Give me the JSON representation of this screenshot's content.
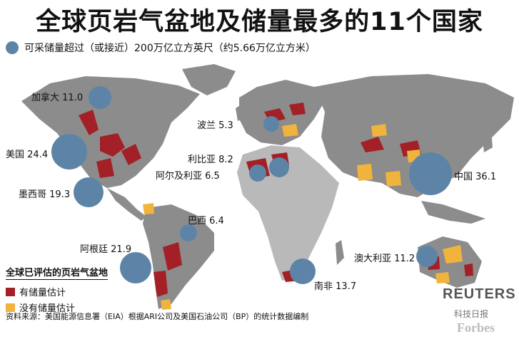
{
  "title": "全球页岩气盆地及储量最多的11个国家",
  "subtitle": "可采储量超过（或接近）200万亿立方英尺（约5.66万亿立方米）",
  "countries": [
    {
      "name": "加拿大",
      "value": "11.0"
    },
    {
      "name": "美国",
      "value": "24.4"
    },
    {
      "name": "墨西哥",
      "value": "19.3"
    },
    {
      "name": "巴西",
      "value": "6.4"
    },
    {
      "name": "阿根廷",
      "value": "21.9"
    },
    {
      "name": "波兰",
      "value": "5.3"
    },
    {
      "name": "利比亚",
      "value": "8.2"
    },
    {
      "name": "阿尔及利亚",
      "value": "6.5"
    },
    {
      "name": "南非",
      "value": "13.7"
    },
    {
      "name": "中国",
      "value": "36.1"
    },
    {
      "name": "澳大利亚",
      "value": "11.2"
    }
  ],
  "legend": {
    "title": "全球已评估的页岩气盆地",
    "items": [
      {
        "label": "有储量估计",
        "color": "#a32027"
      },
      {
        "label": "没有储量估计",
        "color": "#f0b43c"
      }
    ]
  },
  "source": "资料来源：美国能源信息署（EIA）根据ARI公司及美国石油公司（BP）的统计数据编制",
  "logo": "REUTERS",
  "watermark_top": "科技日报",
  "watermark_bottom": "Forbes",
  "colors": {
    "bubble": "#5d84a7",
    "land": "#8c8c8c",
    "land_light": "#b9b9b9"
  }
}
